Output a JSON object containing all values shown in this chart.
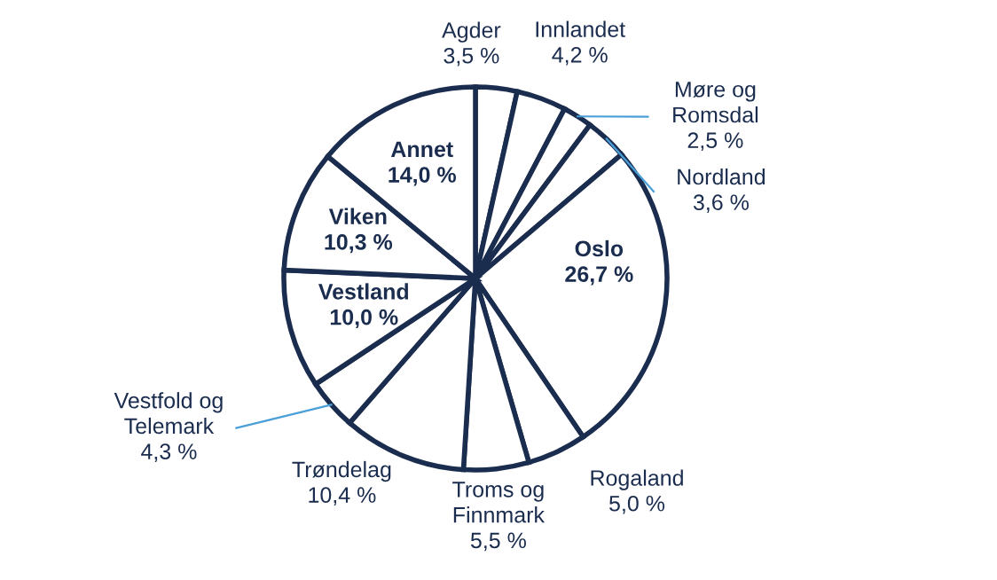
{
  "chart_data": {
    "type": "pie",
    "categories": [
      "Agder",
      "Innlandet",
      "Møre og Romsdal",
      "Nordland",
      "Oslo",
      "Rogaland",
      "Troms og Finnmark",
      "Trøndelag",
      "Vestfold og Telemark",
      "Vestland",
      "Viken",
      "Annet"
    ],
    "values": [
      3.5,
      4.2,
      2.5,
      3.6,
      26.7,
      5.0,
      5.5,
      10.4,
      4.3,
      10.0,
      10.3,
      14.0
    ],
    "value_labels": [
      "3,5 %",
      "4,2 %",
      "2,5 %",
      "3,6 %",
      "26,7 %",
      "5,0 %",
      "5,5 %",
      "10,4 %",
      "4,3 %",
      "10,0 %",
      "10,3 %",
      "14,0 %"
    ],
    "colors": [
      "#ffffff",
      "#ffffff",
      "#ffffff",
      "#ffffff",
      "#ffffff",
      "#ffffff",
      "#ffffff",
      "#ffffff",
      "#ffffff",
      "#ffffff",
      "#ffffff",
      "#ffffff"
    ]
  }
}
